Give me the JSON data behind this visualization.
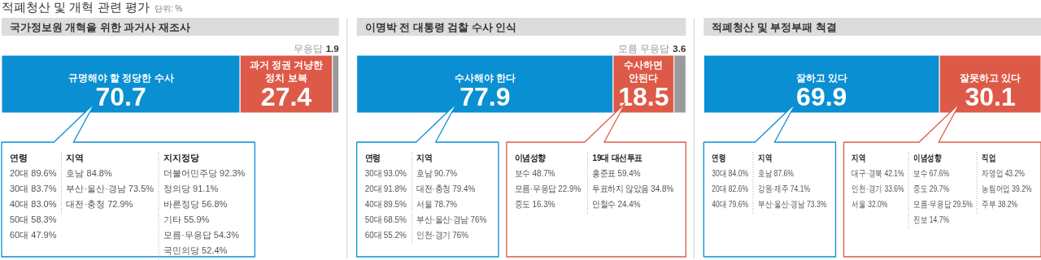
{
  "chart_data": [
    {
      "type": "bar",
      "orientation": "horizontal",
      "stacked": true,
      "title": "국가정보원 개혁을 위한 과거사 재조사",
      "categories": [
        null
      ],
      "xlim": [
        0,
        100
      ],
      "data_labels": true,
      "legend": false,
      "series": [
        {
          "name": "규명해야 할 정당한 수사",
          "color": "#0a8fd2",
          "values": [
            70.7
          ]
        },
        {
          "name": "과거 정권 겨냥한 정치 보복",
          "color": "#de5a48",
          "values": [
            27.4
          ]
        },
        {
          "name": "무응답",
          "color": "#9a9a9c",
          "values": [
            1.9
          ]
        }
      ],
      "annotations": [
        "적폐청산 및 개혁 관련 평가",
        "단위: %",
        "연령\n20대 89.6%\n30대 83.7%\n40대 83.0%\n50대 58.3%\n60대 47.9%\n\n지역\n호남 84.8%\n부산·울산·경남 73.5%\n대전·충청 72.9%\n\n지지정당\n더불어민주당 92.3%\n정의당 91.1%\n바른정당 56.8%\n기타 55.9%\n모름·무응답 54.3%\n국민의당 52.4%"
      ]
    },
    {
      "type": "bar",
      "orientation": "horizontal",
      "stacked": true,
      "title": "이명박 전 대통령 검찰 수사 인식",
      "categories": [
        null
      ],
      "xlim": [
        0,
        100
      ],
      "data_labels": true,
      "legend": false,
      "series": [
        {
          "name": "수사해야 한다",
          "color": "#0a8fd2",
          "values": [
            77.9
          ]
        },
        {
          "name": "수사하면 안된다",
          "color": "#de5a48",
          "values": [
            18.5
          ]
        },
        {
          "name": "모름 무응답",
          "color": "#9a9a9c",
          "values": [
            3.6
          ]
        }
      ],
      "annotations": [
        "연령\n30대 93.0%\n20대 91.8%\n40대 89.5%\n50대 68.5%\n60대 55.2%\n\n지역\n호남 90.7%\n대전·충청 79.4%\n서울 78.7%\n부산·울산·경남 76%\n인천·경기 76%",
        "이념성향\n보수 48.7%\n모름·무응답 22.9%\n중도 16.3%\n\n19대 대선투표\n홍준표 59.4%\n투표하지 않았음 34.8%\n안철수 24.4%"
      ]
    },
    {
      "type": "bar",
      "orientation": "horizontal",
      "stacked": true,
      "title": "적폐청산 및 부정부패 척결",
      "categories": [
        null
      ],
      "xlim": [
        0,
        100
      ],
      "data_labels": true,
      "legend": false,
      "series": [
        {
          "name": "잘하고 있다",
          "color": "#0a8fd2",
          "values": [
            69.9
          ]
        },
        {
          "name": "잘못하고 있다",
          "color": "#de5a48",
          "values": [
            30.1
          ]
        }
      ],
      "annotations": [
        "연령\n30대 84.0%\n20대 82.6%\n40대 79.6%\n\n지역\n호남 87.6%\n강원·제주 74.1%\n부산·울산·경남 73.3%",
        "지역\n대구·경북 42.1%\n인천·경기 33.6%\n서울 32.0%\n\n이념성향\n보수 67.6%\n중도 29.7%\n모름·무응답 29.5%\n진보 14.7%\n\n직업\n자영업 43.2%\n농림어업 39.2%\n주부 38.2%"
      ]
    }
  ]
}
